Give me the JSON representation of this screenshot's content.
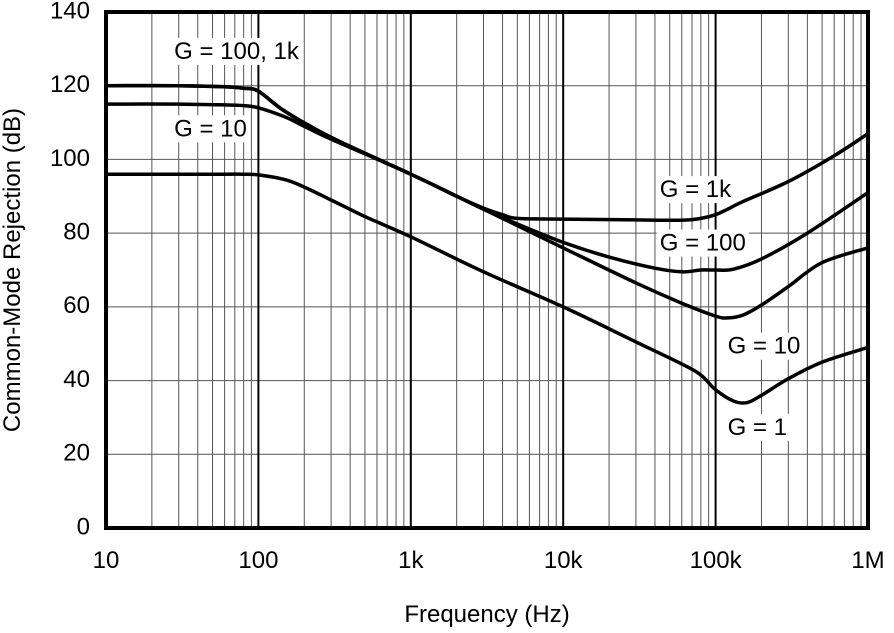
{
  "chart_data": {
    "type": "line",
    "title": "",
    "xlabel": "Frequency (Hz)",
    "ylabel": "Common-Mode Rejection (dB)",
    "xscale": "log",
    "xlim": [
      10,
      1000000
    ],
    "ylim": [
      0,
      140
    ],
    "grid": true,
    "x_ticks": [
      {
        "value": 10,
        "label": "10"
      },
      {
        "value": 100,
        "label": "100"
      },
      {
        "value": 1000,
        "label": "1k"
      },
      {
        "value": 10000,
        "label": "10k"
      },
      {
        "value": 100000,
        "label": "100k"
      },
      {
        "value": 1000000,
        "label": "1M"
      }
    ],
    "y_ticks": [
      {
        "value": 0,
        "label": "0"
      },
      {
        "value": 20,
        "label": "20"
      },
      {
        "value": 40,
        "label": "40"
      },
      {
        "value": 60,
        "label": "60"
      },
      {
        "value": 80,
        "label": "80"
      },
      {
        "value": 100,
        "label": "100"
      },
      {
        "value": 120,
        "label": "120"
      },
      {
        "value": 140,
        "label": "140"
      }
    ],
    "series": [
      {
        "name": "G = 1k",
        "x": [
          10,
          30,
          60,
          80,
          100,
          150,
          300,
          1000,
          2000,
          3000,
          4000,
          5000,
          10000,
          30000,
          60000,
          80000,
          100000,
          120000,
          150000,
          300000,
          600000,
          1000000
        ],
        "y": [
          120,
          120,
          119.7,
          119.3,
          118.5,
          113,
          106,
          96,
          90,
          86.8,
          85,
          84,
          83.8,
          83.6,
          83.5,
          84,
          85,
          86.5,
          88.5,
          94,
          101,
          107
        ]
      },
      {
        "name": "G = 100",
        "x": [
          10,
          30,
          60,
          80,
          100,
          150,
          300,
          1000,
          2000,
          3000,
          5000,
          10000,
          20000,
          40000,
          60000,
          80000,
          100000,
          130000,
          200000,
          400000,
          1000000
        ],
        "y": [
          120,
          120,
          119.7,
          119.3,
          118.5,
          113,
          106,
          96,
          90,
          86.5,
          82.5,
          77.5,
          73.5,
          70.5,
          69.5,
          70,
          70,
          70.2,
          73,
          80,
          91
        ]
      },
      {
        "name": "G = 10",
        "x": [
          10,
          30,
          60,
          80,
          100,
          150,
          200,
          300,
          1000,
          3000,
          10000,
          30000,
          60000,
          100000,
          120000,
          150000,
          200000,
          300000,
          500000,
          1000000
        ],
        "y": [
          115,
          115,
          114.8,
          114.6,
          114,
          111.5,
          109,
          105.5,
          96,
          86.5,
          76,
          66.5,
          61,
          57.5,
          57,
          57.7,
          60.5,
          65.5,
          72,
          76
        ]
      },
      {
        "name": "G = 1",
        "x": [
          10,
          30,
          60,
          80,
          100,
          150,
          200,
          300,
          500,
          1000,
          3000,
          10000,
          30000,
          60000,
          80000,
          100000,
          130000,
          160000,
          200000,
          300000,
          500000,
          1000000
        ],
        "y": [
          96,
          96,
          96,
          96,
          95.8,
          94.5,
          92.5,
          89,
          84.5,
          79,
          69.5,
          60,
          50.5,
          44.5,
          41.5,
          37.5,
          34.5,
          34,
          36,
          40.5,
          45,
          49
        ]
      }
    ],
    "annotations": [
      {
        "text": "G = 100, 1k",
        "x": 28,
        "y": 129
      },
      {
        "text": "G = 10",
        "x": 28,
        "y": 108
      },
      {
        "text": "G = 1k",
        "x": 43000,
        "y": 91.5
      },
      {
        "text": "G = 100",
        "x": 43000,
        "y": 77
      },
      {
        "text": "G = 10",
        "x": 120000,
        "y": 49
      },
      {
        "text": "G = 1",
        "x": 120000,
        "y": 27
      }
    ]
  }
}
